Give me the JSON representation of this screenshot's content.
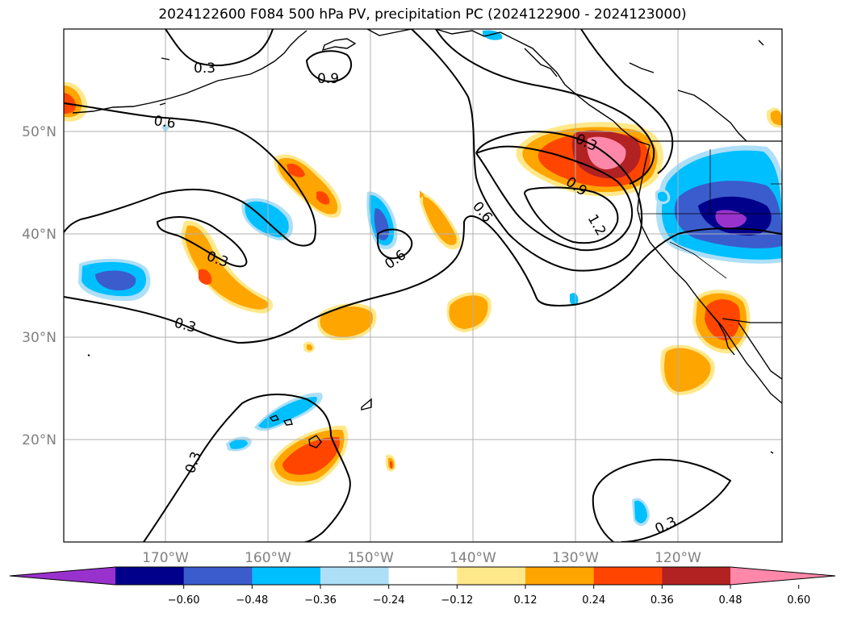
{
  "title": "2024122600 F084 500 hPa PV, precipitation PC (2024122900 - 2024123000)",
  "map": {
    "latitude_labels": [
      "50°N",
      "40°N",
      "30°N",
      "20°N"
    ],
    "longitude_labels": [
      "170°W",
      "160°W",
      "150°W",
      "140°W",
      "130°W",
      "120°W"
    ],
    "extent": {
      "lon_min": -180,
      "lon_max": -110,
      "lat_min": 10,
      "lat_max": 60
    },
    "grid": true
  },
  "contour_labels": {
    "pv_03_nw": "0.3",
    "pv_06_nw": "0.6",
    "pv_09_n": "0.9",
    "pv_03_ne": "0.3",
    "pv_09_e": "0.9",
    "pv_12_e": "1.2",
    "pv_06_c": "0.6",
    "pv_06_ml": "0.6",
    "pv_03_w": "0.3",
    "pv_03_sw": "0.3",
    "pv_03_s": "0.3",
    "pv_03_se": "0.3"
  },
  "colorbar": {
    "ticks": [
      "−0.60",
      "−0.48",
      "−0.36",
      "−0.24",
      "−0.12",
      "0.12",
      "0.24",
      "0.36",
      "0.48",
      "0.60"
    ],
    "colors": [
      "#9932CC",
      "#00008B",
      "#3A5CCC",
      "#00BFFF",
      "#ADDFF7",
      "#FFFFFF",
      "#FFE88A",
      "#FFA500",
      "#FF4500",
      "#B22222",
      "#FF88AA"
    ]
  },
  "colors": {
    "land_line": "#000000",
    "grid_line": "#b0b0b0"
  }
}
